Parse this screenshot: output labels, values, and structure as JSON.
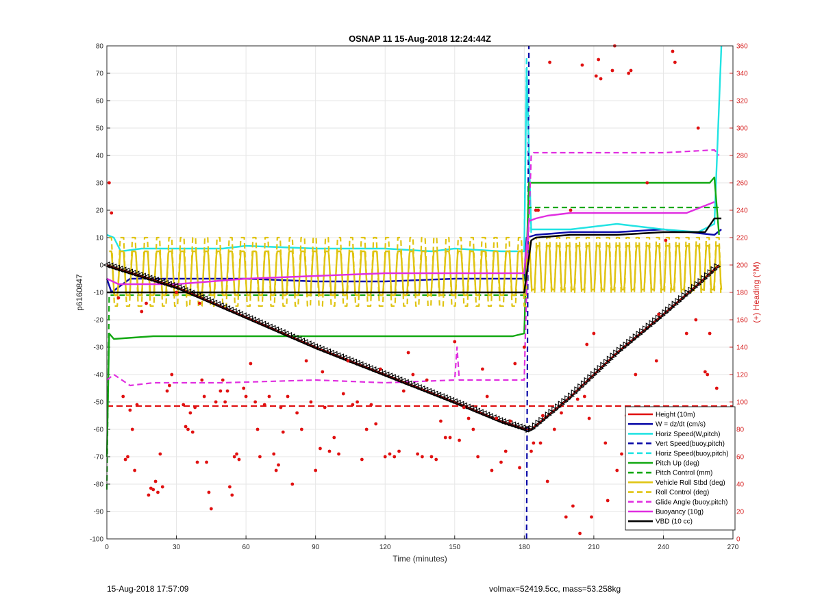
{
  "chart_data": {
    "type": "line",
    "title": "OSNAP 11 15-Aug-2018 12:24:44Z",
    "xlabel": "Time (minutes)",
    "ylabel": "p6160847",
    "y2label": "(+) Heading (°M)",
    "xlim": [
      0,
      270
    ],
    "ylim": [
      -100,
      80
    ],
    "y2lim": [
      0,
      360
    ],
    "xticks": [
      "0",
      "30",
      "60",
      "90",
      "120",
      "150",
      "180",
      "210",
      "240",
      "270"
    ],
    "yticks": [
      "-100",
      "-90",
      "-80",
      "-70",
      "-60",
      "-50",
      "-40",
      "-30",
      "-20",
      "-10",
      "0",
      "10",
      "20",
      "30",
      "40",
      "50",
      "60",
      "70",
      "80"
    ],
    "y2ticks": [
      "0",
      "20",
      "40",
      "60",
      "80",
      "100",
      "120",
      "140",
      "160",
      "180",
      "200",
      "220",
      "240",
      "260",
      "280",
      "300",
      "320",
      "340",
      "360"
    ],
    "grid": true,
    "legend_position": "bottom-right",
    "colors": {
      "red": "#e01010",
      "blue": "#0a0aa8",
      "cyan": "#22e3e3",
      "green": "#12a812",
      "yellow": "#e0c412",
      "magenta": "#e02ee0",
      "black": "#000000"
    },
    "series": [
      {
        "name": "Height (10m)",
        "color": "red",
        "style": "solid",
        "points": [
          [
            0,
            0
          ],
          [
            30,
            -8
          ],
          [
            60,
            -19
          ],
          [
            90,
            -30
          ],
          [
            120,
            -40
          ],
          [
            150,
            -50
          ],
          [
            170,
            -57
          ],
          [
            181,
            -60
          ],
          [
            183,
            -60
          ],
          [
            200,
            -48
          ],
          [
            220,
            -32
          ],
          [
            240,
            -18
          ],
          [
            255,
            -7
          ],
          [
            264,
            0
          ]
        ]
      },
      {
        "name": "W = dz/dt (cm/s)",
        "color": "blue",
        "style": "solid",
        "points": [
          [
            0,
            -5
          ],
          [
            2,
            -10
          ],
          [
            10,
            -5
          ],
          [
            20,
            -5
          ],
          [
            40,
            -5
          ],
          [
            60,
            -5
          ],
          [
            90,
            -6
          ],
          [
            120,
            -6
          ],
          [
            150,
            -5
          ],
          [
            175,
            -5
          ],
          [
            180,
            -5
          ],
          [
            181,
            10
          ],
          [
            185,
            11
          ],
          [
            200,
            12
          ],
          [
            220,
            12
          ],
          [
            240,
            13
          ],
          [
            262,
            11
          ],
          [
            265,
            13
          ]
        ]
      },
      {
        "name": "Horiz Speed(W,pitch)",
        "color": "cyan",
        "style": "solid",
        "points": [
          [
            0,
            11
          ],
          [
            3,
            10
          ],
          [
            6,
            5
          ],
          [
            15,
            6
          ],
          [
            30,
            6
          ],
          [
            50,
            6
          ],
          [
            60,
            7
          ],
          [
            90,
            6
          ],
          [
            120,
            6
          ],
          [
            140,
            5
          ],
          [
            150,
            6
          ],
          [
            170,
            5
          ],
          [
            180,
            5
          ],
          [
            181,
            70
          ],
          [
            183,
            13
          ],
          [
            200,
            13
          ],
          [
            220,
            15
          ],
          [
            240,
            13
          ],
          [
            255,
            12
          ],
          [
            262,
            15
          ],
          [
            265,
            80
          ]
        ]
      },
      {
        "name": "Vert Speed(buoy,pitch)",
        "color": "blue",
        "style": "dashed",
        "points": [
          [
            181,
            -100
          ],
          [
            182,
            80
          ]
        ]
      },
      {
        "name": "Horiz Speed(buoy,pitch)",
        "color": "cyan",
        "style": "dashed",
        "points": [
          [
            180,
            5
          ],
          [
            181,
            76
          ],
          [
            183,
            11
          ]
        ]
      },
      {
        "name": "Pitch Up (deg)",
        "color": "green",
        "style": "solid",
        "points": [
          [
            0,
            -70
          ],
          [
            1,
            -25
          ],
          [
            3,
            -27
          ],
          [
            20,
            -26
          ],
          [
            40,
            -26
          ],
          [
            60,
            -26
          ],
          [
            90,
            -26
          ],
          [
            120,
            -26
          ],
          [
            150,
            -26
          ],
          [
            175,
            -26
          ],
          [
            180,
            -25
          ],
          [
            182,
            30
          ],
          [
            200,
            30
          ],
          [
            220,
            30
          ],
          [
            240,
            30
          ],
          [
            260,
            30
          ],
          [
            262,
            32
          ],
          [
            264,
            11
          ]
        ]
      },
      {
        "name": "Pitch Control (mm)",
        "color": "green",
        "style": "dashed",
        "points": [
          [
            0,
            -82
          ],
          [
            1,
            -11
          ],
          [
            60,
            -11
          ],
          [
            120,
            -11
          ],
          [
            180,
            -11
          ],
          [
            182,
            21
          ],
          [
            265,
            21
          ]
        ]
      },
      {
        "name": "Vehicle Roll Stbd (deg)",
        "color": "yellow",
        "style": "solid",
        "points": [
          [
            0,
            0
          ],
          [
            180,
            0
          ],
          [
            182,
            5
          ],
          [
            265,
            5
          ]
        ]
      },
      {
        "name": "Roll Control (deg)",
        "color": "yellow",
        "style": "dashed",
        "points": [
          [
            0,
            0
          ],
          [
            180,
            0
          ],
          [
            182,
            5
          ],
          [
            265,
            5
          ]
        ]
      },
      {
        "name": "Glide Angle (buoy,pitch)",
        "color": "magenta",
        "style": "dashed",
        "points": [
          [
            0,
            -42
          ],
          [
            3,
            -40
          ],
          [
            10,
            -44
          ],
          [
            20,
            -43
          ],
          [
            50,
            -43
          ],
          [
            90,
            -42
          ],
          [
            120,
            -43
          ],
          [
            150,
            -42
          ],
          [
            151,
            -30
          ],
          [
            152,
            -42
          ],
          [
            180,
            -42
          ],
          [
            181,
            -10
          ],
          [
            183,
            40
          ],
          [
            184,
            41
          ],
          [
            200,
            41
          ],
          [
            220,
            41
          ],
          [
            240,
            41
          ],
          [
            262,
            42
          ],
          [
            264,
            40
          ]
        ]
      },
      {
        "name": "Buoyancy (10g)",
        "color": "magenta",
        "style": "solid",
        "points": [
          [
            0,
            -5
          ],
          [
            5,
            -7
          ],
          [
            30,
            -7
          ],
          [
            60,
            -5
          ],
          [
            90,
            -4
          ],
          [
            120,
            -3
          ],
          [
            150,
            -3
          ],
          [
            180,
            -3
          ],
          [
            182,
            16
          ],
          [
            185,
            17
          ],
          [
            190,
            18
          ],
          [
            200,
            19
          ],
          [
            220,
            19
          ],
          [
            250,
            19
          ],
          [
            262,
            23
          ]
        ]
      },
      {
        "name": "VBD (10 cc)",
        "color": "black",
        "style": "solid",
        "points": [
          [
            0,
            -10
          ],
          [
            180,
            -10
          ],
          [
            183,
            9
          ],
          [
            185,
            10
          ],
          [
            200,
            11
          ],
          [
            220,
            11
          ],
          [
            240,
            12
          ],
          [
            258,
            12
          ],
          [
            262,
            17
          ],
          [
            265,
            17
          ]
        ]
      }
    ],
    "roll_oscillation_amplitude_deg": [
      8,
      15
    ],
    "glider_path": {
      "color": "black",
      "marker": "triangle",
      "points": [
        [
          0,
          0
        ],
        [
          30,
          -8
        ],
        [
          60,
          -19
        ],
        [
          90,
          -30
        ],
        [
          120,
          -40
        ],
        [
          150,
          -50
        ],
        [
          170,
          -57
        ],
        [
          181,
          -60
        ],
        [
          183,
          -60
        ],
        [
          200,
          -48
        ],
        [
          220,
          -32
        ],
        [
          240,
          -18
        ],
        [
          255,
          -7
        ],
        [
          264,
          0
        ]
      ]
    },
    "reference_line": {
      "color": "red",
      "style": "dashed",
      "y": -51.5
    },
    "heading_points_deg": [
      [
        1,
        260
      ],
      [
        2,
        238
      ],
      [
        5,
        176
      ],
      [
        7,
        104
      ],
      [
        8,
        58
      ],
      [
        9,
        60
      ],
      [
        10,
        94
      ],
      [
        11,
        80
      ],
      [
        12,
        50
      ],
      [
        13,
        98
      ],
      [
        15,
        166
      ],
      [
        17,
        172
      ],
      [
        18,
        32
      ],
      [
        19,
        37
      ],
      [
        20,
        36
      ],
      [
        21,
        42
      ],
      [
        22,
        34
      ],
      [
        23,
        62
      ],
      [
        24,
        38
      ],
      [
        26,
        108
      ],
      [
        27,
        112
      ],
      [
        28,
        120
      ],
      [
        30,
        180
      ],
      [
        33,
        98
      ],
      [
        34,
        82
      ],
      [
        35,
        80
      ],
      [
        36,
        92
      ],
      [
        37,
        78
      ],
      [
        38,
        96
      ],
      [
        39,
        56
      ],
      [
        40,
        172
      ],
      [
        41,
        116
      ],
      [
        42,
        104
      ],
      [
        43,
        56
      ],
      [
        44,
        34
      ],
      [
        45,
        22
      ],
      [
        47,
        100
      ],
      [
        49,
        108
      ],
      [
        50,
        116
      ],
      [
        51,
        100
      ],
      [
        52,
        108
      ],
      [
        53,
        38
      ],
      [
        54,
        32
      ],
      [
        55,
        60
      ],
      [
        56,
        62
      ],
      [
        57,
        58
      ],
      [
        59,
        110
      ],
      [
        60,
        104
      ],
      [
        62,
        128
      ],
      [
        64,
        100
      ],
      [
        65,
        80
      ],
      [
        66,
        60
      ],
      [
        68,
        98
      ],
      [
        70,
        104
      ],
      [
        72,
        62
      ],
      [
        73,
        50
      ],
      [
        74,
        54
      ],
      [
        75,
        96
      ],
      [
        76,
        78
      ],
      [
        78,
        104
      ],
      [
        80,
        40
      ],
      [
        82,
        92
      ],
      [
        84,
        80
      ],
      [
        86,
        130
      ],
      [
        88,
        100
      ],
      [
        90,
        50
      ],
      [
        92,
        66
      ],
      [
        93,
        122
      ],
      [
        94,
        96
      ],
      [
        96,
        64
      ],
      [
        98,
        74
      ],
      [
        100,
        62
      ],
      [
        102,
        106
      ],
      [
        104,
        130
      ],
      [
        106,
        98
      ],
      [
        108,
        100
      ],
      [
        110,
        58
      ],
      [
        112,
        80
      ],
      [
        114,
        98
      ],
      [
        116,
        84
      ],
      [
        118,
        124
      ],
      [
        120,
        60
      ],
      [
        122,
        62
      ],
      [
        124,
        60
      ],
      [
        126,
        64
      ],
      [
        128,
        108
      ],
      [
        130,
        136
      ],
      [
        132,
        120
      ],
      [
        134,
        62
      ],
      [
        136,
        60
      ],
      [
        138,
        116
      ],
      [
        140,
        60
      ],
      [
        142,
        58
      ],
      [
        144,
        86
      ],
      [
        146,
        74
      ],
      [
        148,
        74
      ],
      [
        150,
        144
      ],
      [
        152,
        72
      ],
      [
        154,
        96
      ],
      [
        156,
        88
      ],
      [
        158,
        80
      ],
      [
        160,
        60
      ],
      [
        162,
        124
      ],
      [
        164,
        104
      ],
      [
        166,
        50
      ],
      [
        168,
        88
      ],
      [
        170,
        56
      ],
      [
        172,
        64
      ],
      [
        174,
        86
      ],
      [
        176,
        128
      ],
      [
        178,
        52
      ],
      [
        180,
        140
      ],
      [
        183,
        64
      ],
      [
        184,
        70
      ],
      [
        185,
        240
      ],
      [
        186,
        240
      ],
      [
        187,
        70
      ],
      [
        188,
        90
      ],
      [
        190,
        42
      ],
      [
        191,
        348
      ],
      [
        193,
        80
      ],
      [
        196,
        92
      ],
      [
        198,
        16
      ],
      [
        200,
        240
      ],
      [
        201,
        24
      ],
      [
        203,
        102
      ],
      [
        204,
        4
      ],
      [
        205,
        346
      ],
      [
        206,
        104
      ],
      [
        207,
        142
      ],
      [
        208,
        88
      ],
      [
        209,
        16
      ],
      [
        210,
        150
      ],
      [
        211,
        338
      ],
      [
        212,
        350
      ],
      [
        213,
        336
      ],
      [
        215,
        70
      ],
      [
        216,
        28
      ],
      [
        218,
        342
      ],
      [
        219,
        360
      ],
      [
        220,
        50
      ],
      [
        222,
        62
      ],
      [
        224,
        90
      ],
      [
        225,
        340
      ],
      [
        226,
        342
      ],
      [
        228,
        120
      ],
      [
        230,
        80
      ],
      [
        232,
        68
      ],
      [
        233,
        260
      ],
      [
        234,
        42
      ],
      [
        235,
        56
      ],
      [
        236,
        40
      ],
      [
        237,
        130
      ],
      [
        238,
        164
      ],
      [
        240,
        50
      ],
      [
        241,
        218
      ],
      [
        242,
        32
      ],
      [
        244,
        356
      ],
      [
        245,
        348
      ],
      [
        247,
        86
      ],
      [
        248,
        58
      ],
      [
        250,
        150
      ],
      [
        251,
        30
      ],
      [
        252,
        40
      ],
      [
        254,
        160
      ],
      [
        255,
        300
      ],
      [
        256,
        22
      ],
      [
        257,
        40
      ],
      [
        258,
        122
      ],
      [
        259,
        120
      ],
      [
        260,
        150
      ],
      [
        261,
        80
      ],
      [
        262,
        62
      ],
      [
        263,
        110
      ],
      [
        264,
        64
      ]
    ]
  },
  "footer": {
    "timestamp": "15-Aug-2018 17:57:09",
    "info": "volmax=52419.5cc, mass=53.258kg"
  }
}
